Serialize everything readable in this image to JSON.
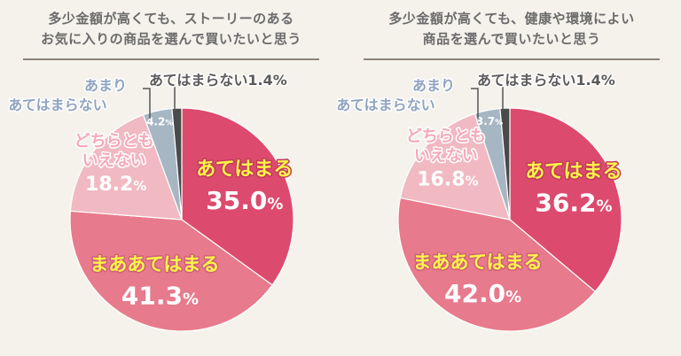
{
  "colors": {
    "background": "#f5f2ec",
    "title_text": "#6b6b6b",
    "slice_dark": "#dc4b6e",
    "slice_mid": "#e77a8c",
    "slice_light": "#f1b9c2",
    "slice_gray": "#a6b6c2",
    "slice_black": "#4a4a4a",
    "label_yellow": "#fff34a",
    "label_white": "#ffffff",
    "label_gray": "#5a5a5a",
    "label_blue": "#8fa4c0",
    "label_pink": "#f4a9b9"
  },
  "chart_data": [
    {
      "type": "pie",
      "title": "多少金額が高くても、ストーリーのある お気に入りの商品を選んで買いたいと思う",
      "title_lines": [
        "多少金額が高くても、ストーリーのある",
        "お気に入りの商品を選んで買いたいと思う"
      ],
      "slices": [
        {
          "label": "あてはまる",
          "value": 35.0,
          "value_text": "35.0",
          "unit": "%"
        },
        {
          "label": "まああてはまる",
          "value": 41.3,
          "value_text": "41.3",
          "unit": "%"
        },
        {
          "label": "どちらともいえない",
          "label_lines": [
            "どちらとも",
            "いえない"
          ],
          "value": 18.2,
          "value_text": "18.2",
          "unit": "%"
        },
        {
          "label": "あまりあてはまらない",
          "label_lines": [
            "あまり",
            "あてはまらない"
          ],
          "value": 4.2,
          "value_text": "4.2",
          "unit": "%"
        },
        {
          "label": "あてはまらない",
          "value": 1.4,
          "value_text": "1.4",
          "unit": "%",
          "inline_label": "あてはまらない1.4%"
        }
      ]
    },
    {
      "type": "pie",
      "title": "多少金額が高くても、健康や環境によい 商品を選んで買いたいと思う",
      "title_lines": [
        "多少金額が高くても、健康や環境によい",
        "商品を選んで買いたいと思う"
      ],
      "slices": [
        {
          "label": "あてはまる",
          "value": 36.2,
          "value_text": "36.2",
          "unit": "%"
        },
        {
          "label": "まああてはまる",
          "value": 42.0,
          "value_text": "42.0",
          "unit": "%"
        },
        {
          "label": "どちらともいえない",
          "label_lines": [
            "どちらとも",
            "いえない"
          ],
          "value": 16.8,
          "value_text": "16.8",
          "unit": "%"
        },
        {
          "label": "あまりあてはまらない",
          "label_lines": [
            "あまり",
            "あてはまらない"
          ],
          "value": 3.7,
          "value_text": "3.7",
          "unit": "%"
        },
        {
          "label": "あてはまらない",
          "value": 1.4,
          "value_text": "1.4",
          "unit": "%",
          "inline_label": "あてはまらない1.4%"
        }
      ]
    }
  ]
}
